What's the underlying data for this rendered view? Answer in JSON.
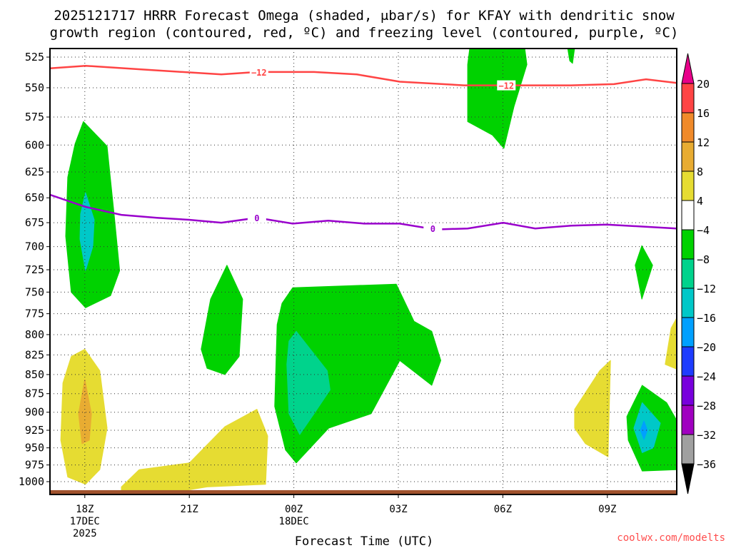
{
  "title": {
    "line1": "2025121717 HRRR Forecast Omega (shaded, μbar/s) for KFAY with dendritic snow",
    "line2": "growth region (contoured, red, ºC) and freezing level (contoured, purple, ºC)"
  },
  "credit": "coolwx.com/modelts",
  "chart_data": {
    "type": "time-height contour",
    "title": "2025121717 HRRR Forecast Omega (shaded, μbar/s) for KFAY with dendritic snow growth region (contoured, red, ºC) and freezing level (contoured, purple, ºC)",
    "xlabel": "Forecast Time (UTC)",
    "ylabel": "",
    "x_units": "hours after 17Z 17DEC 2025",
    "xlim": [
      0,
      18
    ],
    "ylim_hpa": [
      1020,
      518
    ],
    "y_scale": "log",
    "y_ticks": [
      525,
      550,
      575,
      600,
      625,
      650,
      675,
      700,
      725,
      750,
      775,
      800,
      825,
      850,
      875,
      900,
      925,
      950,
      975,
      1000
    ],
    "x_ticks": [
      {
        "hour": 1,
        "lines": [
          "18Z",
          "17DEC",
          "2025"
        ]
      },
      {
        "hour": 4,
        "lines": [
          "21Z"
        ]
      },
      {
        "hour": 7,
        "lines": [
          "00Z",
          "18DEC"
        ]
      },
      {
        "hour": 10,
        "lines": [
          "03Z"
        ]
      },
      {
        "hour": 13,
        "lines": [
          "06Z"
        ]
      },
      {
        "hour": 16,
        "lines": [
          "09Z"
        ]
      }
    ],
    "colorbar": {
      "labels": [
        "20",
        "16",
        "12",
        "8",
        "4",
        "-4",
        "-8",
        "-12",
        "-16",
        "-20",
        "-24",
        "-28",
        "-32",
        "-36"
      ],
      "colors": [
        "#ff4444",
        "#f08a2a",
        "#e8ac32",
        "#e6dc32",
        "#ffffff",
        "#00d200",
        "#00d38c",
        "#00c8c8",
        "#00a0ff",
        "#1e3cff",
        "#7800dc",
        "#a000c0",
        "#a0a0a0"
      ],
      "over_color": "#e8008a",
      "under_color": "#000000"
    },
    "shaded_regions": [
      {
        "name": "green-blob-18z",
        "color": "#00d200",
        "points": [
          [
            0.96,
            579
          ],
          [
            1.64,
            601
          ],
          [
            1.84,
            666
          ],
          [
            2.0,
            726
          ],
          [
            1.74,
            754
          ],
          [
            1.02,
            768
          ],
          [
            0.61,
            750
          ],
          [
            0.45,
            689
          ],
          [
            0.51,
            630
          ],
          [
            0.72,
            599
          ]
        ]
      },
      {
        "name": "teal-blob-18z",
        "color": "#00c8c8",
        "points": [
          [
            1.02,
            645
          ],
          [
            1.27,
            672
          ],
          [
            1.23,
            700
          ],
          [
            1.02,
            726
          ],
          [
            0.86,
            692
          ],
          [
            0.88,
            666
          ]
        ]
      },
      {
        "name": "yellow-blob-18z",
        "color": "#e6dc32",
        "points": [
          [
            1.0,
            818
          ],
          [
            1.43,
            845
          ],
          [
            1.64,
            922
          ],
          [
            1.43,
            982
          ],
          [
            1.02,
            1004
          ],
          [
            0.51,
            993
          ],
          [
            0.31,
            939
          ],
          [
            0.37,
            861
          ],
          [
            0.61,
            827
          ]
        ]
      },
      {
        "name": "orange-blob-18z",
        "color": "#e8ac32",
        "points": [
          [
            1.0,
            856
          ],
          [
            1.19,
            902
          ],
          [
            1.13,
            939
          ],
          [
            0.92,
            944
          ],
          [
            0.82,
            902
          ]
        ]
      },
      {
        "name": "green-blob-22z",
        "color": "#00d200",
        "points": [
          [
            5.08,
            720
          ],
          [
            5.53,
            758
          ],
          [
            5.43,
            827
          ],
          [
            5.02,
            850
          ],
          [
            4.51,
            842
          ],
          [
            4.34,
            818
          ],
          [
            4.61,
            758
          ]
        ]
      },
      {
        "name": "green-blob-00z",
        "color": "#00d200",
        "points": [
          [
            6.97,
            745
          ],
          [
            9.94,
            741
          ],
          [
            10.45,
            784
          ],
          [
            10.96,
            796
          ],
          [
            11.22,
            832
          ],
          [
            10.96,
            864
          ],
          [
            10.04,
            832
          ],
          [
            9.22,
            902
          ],
          [
            8.0,
            922
          ],
          [
            7.07,
            972
          ],
          [
            6.76,
            953
          ],
          [
            6.45,
            892
          ],
          [
            6.52,
            788
          ],
          [
            6.66,
            763
          ]
        ]
      },
      {
        "name": "teal-blob-00z",
        "color": "#00d38c",
        "points": [
          [
            7.07,
            796
          ],
          [
            7.96,
            845
          ],
          [
            8.04,
            870
          ],
          [
            7.58,
            902
          ],
          [
            7.17,
            931
          ],
          [
            6.86,
            902
          ],
          [
            6.8,
            837
          ],
          [
            6.86,
            808
          ]
        ]
      },
      {
        "name": "yellow-blob-low",
        "color": "#e6dc32",
        "points": [
          [
            2.05,
            1008
          ],
          [
            2.56,
            982
          ],
          [
            4.0,
            972
          ],
          [
            5.02,
            920
          ],
          [
            5.94,
            896
          ],
          [
            6.25,
            933
          ],
          [
            6.19,
            1004
          ],
          [
            4.51,
            1008
          ],
          [
            3.48,
            1017
          ],
          [
            2.05,
            1017
          ]
        ]
      },
      {
        "name": "green-blob-06z",
        "color": "#00d200",
        "points": [
          [
            12.05,
            518
          ],
          [
            13.63,
            518
          ],
          [
            13.69,
            531
          ],
          [
            13.32,
            566
          ],
          [
            13.03,
            603
          ],
          [
            12.7,
            591
          ],
          [
            11.99,
            579
          ],
          [
            11.99,
            531
          ]
        ]
      },
      {
        "name": "green-sliver-08z",
        "color": "#00d200",
        "points": [
          [
            14.86,
            518
          ],
          [
            15.06,
            518
          ],
          [
            15.0,
            530
          ],
          [
            14.92,
            528
          ]
        ]
      },
      {
        "name": "yellow-blob-09z",
        "color": "#e6dc32",
        "points": [
          [
            15.06,
            896
          ],
          [
            15.78,
            845
          ],
          [
            16.09,
            832
          ],
          [
            16.02,
            963
          ],
          [
            15.37,
            944
          ],
          [
            15.06,
            922
          ]
        ]
      },
      {
        "name": "green-blob-10z",
        "color": "#00d200",
        "points": [
          [
            17.0,
            864
          ],
          [
            17.7,
            887
          ],
          [
            17.99,
            911
          ],
          [
            17.99,
            982
          ],
          [
            17.0,
            984
          ],
          [
            16.6,
            939
          ],
          [
            16.56,
            906
          ]
        ]
      },
      {
        "name": "teal-blob-10z",
        "color": "#00c8c8",
        "points": [
          [
            17.0,
            887
          ],
          [
            17.52,
            915
          ],
          [
            17.32,
            950
          ],
          [
            17.0,
            957
          ],
          [
            16.76,
            922
          ]
        ]
      },
      {
        "name": "blue-core-10z",
        "color": "#00a0ff",
        "points": [
          [
            17.05,
            912
          ],
          [
            17.15,
            925
          ],
          [
            17.05,
            938
          ],
          [
            16.95,
            925
          ]
        ]
      },
      {
        "name": "green-sliver-10z",
        "color": "#00d200",
        "points": [
          [
            16.99,
            699
          ],
          [
            17.3,
            720
          ],
          [
            16.99,
            758
          ],
          [
            16.8,
            720
          ]
        ]
      },
      {
        "name": "yellow-edge-11z",
        "color": "#e6dc32",
        "points": [
          [
            17.83,
            792
          ],
          [
            17.99,
            780
          ],
          [
            17.99,
            843
          ],
          [
            17.66,
            837
          ]
        ]
      }
    ],
    "contours": [
      {
        "name": "dendritic-minus12",
        "color": "#ff4444",
        "label": "-12",
        "label_at": [
          [
            6.0,
            537
          ],
          [
            13.1,
            548
          ]
        ],
        "points": [
          [
            0,
            534
          ],
          [
            1.02,
            532
          ],
          [
            2.66,
            535
          ],
          [
            4.92,
            539
          ],
          [
            5.94,
            537
          ],
          [
            7.58,
            537
          ],
          [
            8.81,
            539
          ],
          [
            10.04,
            545
          ],
          [
            11.89,
            548
          ],
          [
            13.11,
            548
          ],
          [
            14.96,
            548
          ],
          [
            16.19,
            547
          ],
          [
            17.11,
            543
          ],
          [
            17.99,
            546
          ]
        ]
      },
      {
        "name": "freezing-level-0",
        "color": "#9900cc",
        "label": "0",
        "label_at": [
          [
            5.94,
            670
          ],
          [
            10.99,
            681
          ]
        ],
        "points": [
          [
            0,
            647
          ],
          [
            1.02,
            659
          ],
          [
            2.05,
            667
          ],
          [
            3.07,
            670
          ],
          [
            3.99,
            672
          ],
          [
            4.92,
            675
          ],
          [
            5.94,
            670
          ],
          [
            6.97,
            676
          ],
          [
            7.99,
            673
          ],
          [
            9.02,
            676
          ],
          [
            10.04,
            676
          ],
          [
            11.07,
            682
          ],
          [
            11.99,
            681
          ],
          [
            13.01,
            675
          ],
          [
            13.93,
            681
          ],
          [
            14.96,
            678
          ],
          [
            15.98,
            677
          ],
          [
            17.0,
            679
          ],
          [
            17.99,
            681
          ]
        ]
      }
    ],
    "terrain": {
      "color": "#a0522d",
      "top_hpa": 1013
    }
  }
}
